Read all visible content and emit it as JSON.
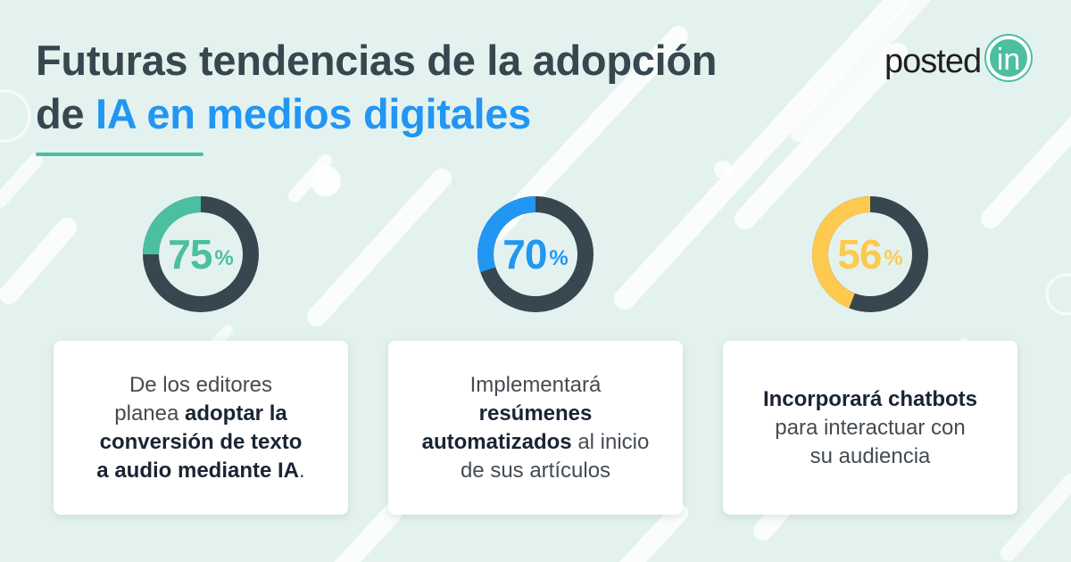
{
  "title": {
    "line1": "Futuras tendencias de la adopción",
    "line2_prefix": "de ",
    "line2_accent": "IA en medios digitales"
  },
  "logo": {
    "word": "posted",
    "badge": "in"
  },
  "colors": {
    "background": "#e4f2ef",
    "title": "#37474f",
    "accent": "#2196f3",
    "ring_track": "#37474f",
    "green": "#4bbfa0",
    "blue": "#2196f3",
    "yellow": "#fdc94f"
  },
  "stats": [
    {
      "value": "75",
      "unit": "%",
      "fraction": 0.25,
      "color": "#4bbfa0",
      "text": [
        {
          "t": "De los editores",
          "b": false,
          "br": true
        },
        {
          "t": "planea ",
          "b": false
        },
        {
          "t": "adoptar la",
          "b": true,
          "br": true
        },
        {
          "t": "conversión de texto",
          "b": true,
          "br": true
        },
        {
          "t": "a audio mediante IA",
          "b": true
        },
        {
          "t": ".",
          "b": false
        }
      ]
    },
    {
      "value": "70",
      "unit": "%",
      "fraction": 0.3,
      "color": "#2196f3",
      "text": [
        {
          "t": "Implementará",
          "b": false,
          "br": true
        },
        {
          "t": "resúmenes",
          "b": true,
          "br": true
        },
        {
          "t": "automatizados",
          "b": true
        },
        {
          "t": " al inicio",
          "b": false,
          "br": true
        },
        {
          "t": "de sus artículos",
          "b": false
        }
      ]
    },
    {
      "value": "56",
      "unit": "%",
      "fraction": 0.44,
      "color": "#fdc94f",
      "text": [
        {
          "t": "Incorporará chatbots",
          "b": true,
          "br": true
        },
        {
          "t": "para interactuar con",
          "b": false,
          "br": true
        },
        {
          "t": "su audiencia",
          "b": false
        }
      ]
    }
  ]
}
